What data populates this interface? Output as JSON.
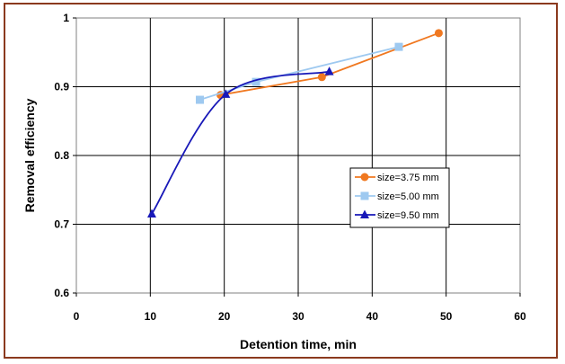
{
  "chart_data": {
    "type": "line",
    "title": "",
    "xlabel": "Detention time, min",
    "ylabel": "Removal efficiency",
    "xlim": [
      0,
      60
    ],
    "ylim": [
      0.6,
      1.0
    ],
    "xticks": [
      "0",
      "10",
      "20",
      "30",
      "40",
      "50",
      "60"
    ],
    "yticks": [
      "0.6",
      "0.7",
      "0.8",
      "0.9",
      "1"
    ],
    "grid": true,
    "legend_position": "right-middle",
    "series": [
      {
        "name": "size=3.75 mm",
        "color": "#f07820",
        "marker": "circle",
        "smooth": false,
        "x": [
          19.5,
          33.2,
          49
        ],
        "y": [
          0.888,
          0.914,
          0.978
        ]
      },
      {
        "name": "size=5.00 mm",
        "color": "#9ec9f0",
        "marker": "square",
        "smooth": false,
        "x": [
          16.7,
          24.3,
          43.6
        ],
        "y": [
          0.881,
          0.907,
          0.958
        ]
      },
      {
        "name": "size=9.50 mm",
        "color": "#1818b8",
        "marker": "triangle",
        "smooth": true,
        "x": [
          10.2,
          20.2,
          34.2
        ],
        "y": [
          0.715,
          0.889,
          0.922
        ]
      }
    ]
  }
}
